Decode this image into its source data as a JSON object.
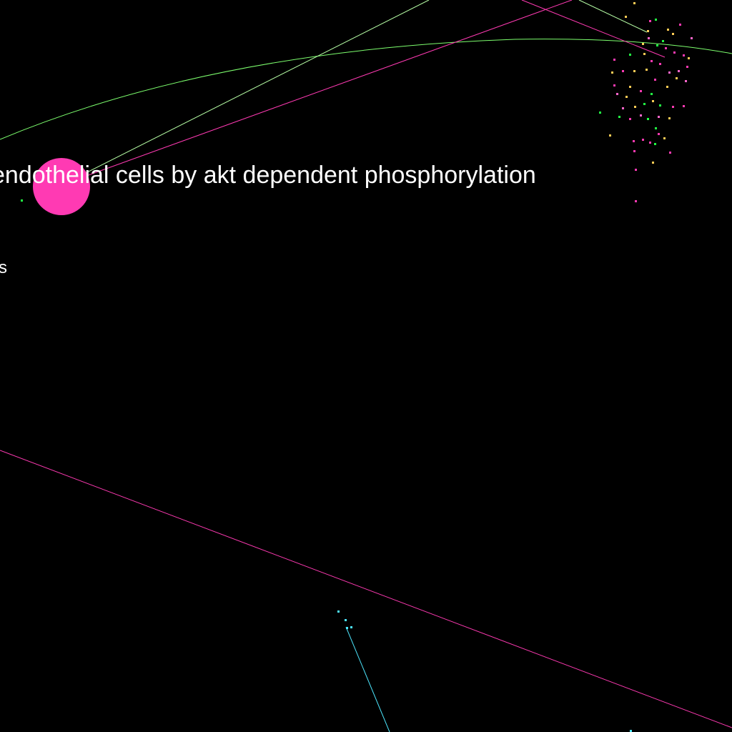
{
  "graph": {
    "background": "#000000",
    "labels": {
      "main": "endothelial cells by akt dependent phosphorylation",
      "secondary": "s"
    },
    "colors": {
      "magenta": "#ff3ab3",
      "green": "#7dff6e",
      "pale_green": "#b7ffa6",
      "cyan": "#4de8ff",
      "yellow": "#ffcc55",
      "bright_green": "#22ff44",
      "node_fill": "#ff3ab3"
    }
  }
}
